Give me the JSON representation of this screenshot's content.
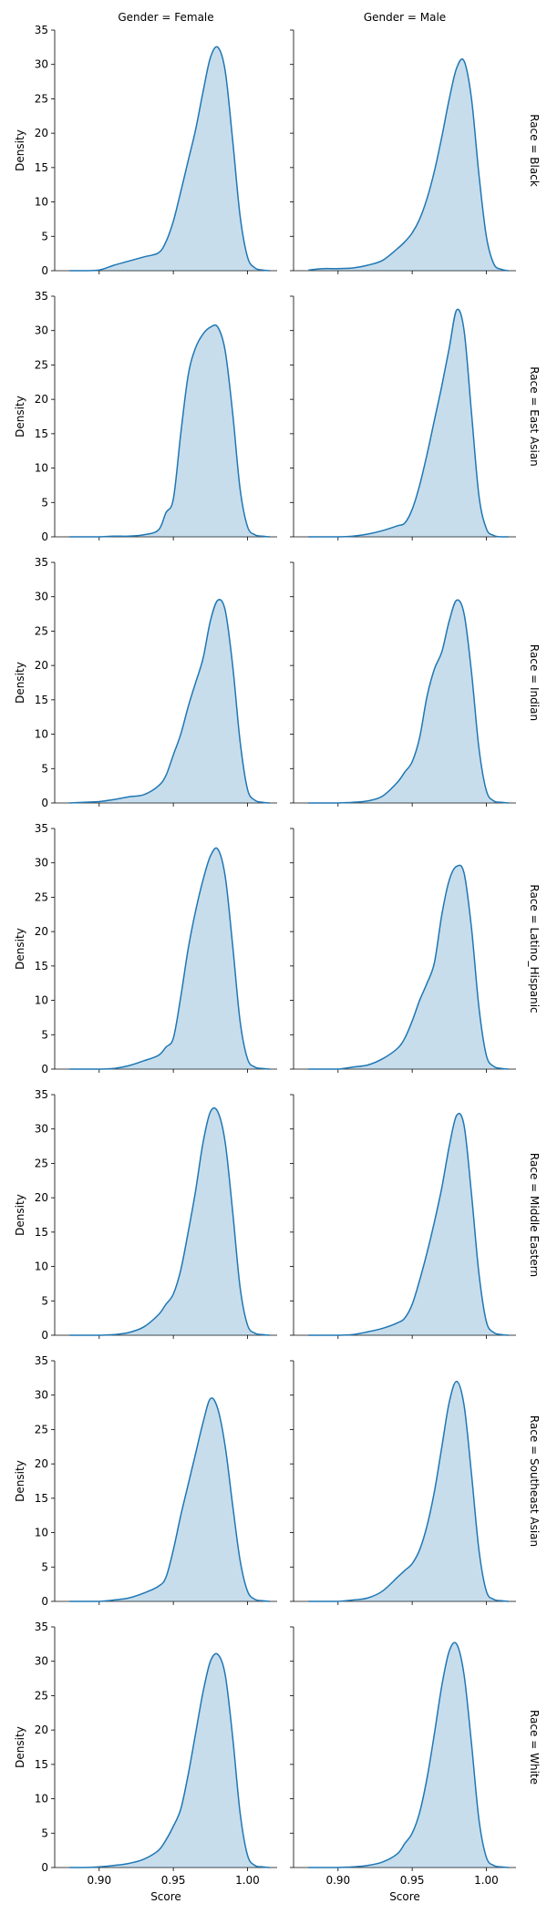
{
  "chart_data": {
    "type": "area",
    "kind": "kde-facet-grid",
    "col_labels": [
      "Gender = Female",
      "Gender = Male"
    ],
    "row_labels": [
      "Race = Black",
      "Race = East Asian",
      "Race = Indian",
      "Race = Latino_Hispanic",
      "Race = Middle Eastern",
      "Race = Southeast Asian",
      "Race = White"
    ],
    "xlabel": "Score",
    "ylabel": "Density",
    "xlim": [
      0.87,
      1.02
    ],
    "ylim": [
      0,
      35
    ],
    "xticks": [
      0.9,
      0.95,
      1.0
    ],
    "xtick_labels": [
      "0.90",
      "0.95",
      "1.00"
    ],
    "yticks": [
      0,
      5,
      10,
      15,
      20,
      25,
      30,
      35
    ],
    "ytick_labels": [
      "0",
      "5",
      "10",
      "15",
      "20",
      "25",
      "30",
      "35"
    ],
    "colors": {
      "line": "#1f77b4",
      "fill": "#1f77b4"
    },
    "x": [
      0.88,
      0.89,
      0.9,
      0.91,
      0.92,
      0.93,
      0.94,
      0.945,
      0.95,
      0.955,
      0.96,
      0.965,
      0.97,
      0.975,
      0.98,
      0.985,
      0.99,
      0.995,
      1.0,
      1.005,
      1.01,
      1.015
    ],
    "panels": [
      {
        "row": 0,
        "col": 0,
        "y": [
          0,
          0,
          0.1,
          0.8,
          1.4,
          2.0,
          2.6,
          4.2,
          7.2,
          11.5,
          16.0,
          20.5,
          26.0,
          31.0,
          32.5,
          29.0,
          19.0,
          8.0,
          2.0,
          0.4,
          0.1,
          0
        ]
      },
      {
        "row": 0,
        "col": 1,
        "y": [
          0.1,
          0.3,
          0.3,
          0.4,
          0.8,
          1.5,
          3.2,
          4.2,
          5.5,
          7.5,
          10.5,
          14.5,
          19.5,
          25.0,
          29.5,
          30.5,
          25.0,
          14.0,
          5.0,
          1.0,
          0.2,
          0
        ]
      },
      {
        "row": 1,
        "col": 0,
        "y": [
          0,
          0,
          0,
          0.1,
          0.1,
          0.3,
          1.0,
          3.5,
          5.5,
          15.0,
          23.5,
          27.5,
          29.5,
          30.5,
          30.5,
          27.0,
          18.0,
          7.0,
          1.5,
          0.3,
          0.1,
          0
        ]
      },
      {
        "row": 1,
        "col": 1,
        "y": [
          0,
          0,
          0,
          0.1,
          0.4,
          0.9,
          1.6,
          2.0,
          4.0,
          7.5,
          12.0,
          17.0,
          22.0,
          27.5,
          33.0,
          30.0,
          18.0,
          6.0,
          1.2,
          0.2,
          0,
          0
        ]
      },
      {
        "row": 2,
        "col": 0,
        "y": [
          0,
          0.1,
          0.2,
          0.5,
          0.9,
          1.2,
          2.5,
          4.0,
          7.0,
          10.0,
          14.0,
          17.5,
          21.0,
          26.5,
          29.5,
          28.0,
          20.0,
          9.0,
          2.0,
          0.4,
          0.1,
          0
        ]
      },
      {
        "row": 2,
        "col": 1,
        "y": [
          0,
          0,
          0,
          0.1,
          0.3,
          1.0,
          3.0,
          4.5,
          6.0,
          9.5,
          15.5,
          19.5,
          22.0,
          26.5,
          29.5,
          27.5,
          19.0,
          8.0,
          1.8,
          0.3,
          0.1,
          0
        ]
      },
      {
        "row": 3,
        "col": 0,
        "y": [
          0,
          0,
          0,
          0.1,
          0.5,
          1.2,
          2.0,
          3.2,
          4.5,
          10.5,
          17.5,
          23.0,
          27.5,
          31.0,
          32.0,
          28.0,
          18.0,
          7.0,
          1.5,
          0.3,
          0.1,
          0
        ]
      },
      {
        "row": 3,
        "col": 1,
        "y": [
          0,
          0,
          0,
          0.3,
          0.6,
          1.5,
          3.0,
          4.5,
          7.0,
          10.0,
          12.5,
          15.5,
          22.5,
          27.5,
          29.5,
          28.5,
          20.5,
          9.0,
          2.0,
          0.4,
          0.1,
          0
        ]
      },
      {
        "row": 4,
        "col": 0,
        "y": [
          0,
          0,
          0,
          0.1,
          0.4,
          1.2,
          3.0,
          4.5,
          6.0,
          9.5,
          15.0,
          21.0,
          28.0,
          32.5,
          32.5,
          28.0,
          18.0,
          7.0,
          1.5,
          0.3,
          0.1,
          0
        ]
      },
      {
        "row": 4,
        "col": 1,
        "y": [
          0,
          0,
          0,
          0.1,
          0.5,
          1.0,
          1.8,
          2.5,
          4.5,
          8.0,
          12.0,
          16.5,
          21.5,
          27.5,
          32.0,
          30.5,
          20.5,
          9.0,
          2.0,
          0.4,
          0.1,
          0
        ]
      },
      {
        "row": 5,
        "col": 0,
        "y": [
          0,
          0,
          0,
          0.2,
          0.5,
          1.2,
          2.2,
          3.5,
          7.5,
          12.5,
          17.0,
          21.5,
          26.0,
          29.5,
          28.0,
          22.5,
          14.0,
          6.0,
          1.5,
          0.3,
          0.1,
          0
        ]
      },
      {
        "row": 5,
        "col": 1,
        "y": [
          0,
          0,
          0,
          0.2,
          0.5,
          1.5,
          3.5,
          4.5,
          5.5,
          7.5,
          11.0,
          16.0,
          22.5,
          29.0,
          32.0,
          28.5,
          18.5,
          7.5,
          1.5,
          0.3,
          0.1,
          0
        ]
      },
      {
        "row": 6,
        "col": 0,
        "y": [
          0,
          0,
          0.1,
          0.3,
          0.6,
          1.2,
          2.5,
          4.0,
          6.0,
          8.5,
          13.5,
          19.5,
          25.5,
          30.0,
          31.0,
          28.0,
          19.0,
          8.0,
          1.8,
          0.3,
          0.1,
          0
        ]
      },
      {
        "row": 6,
        "col": 1,
        "y": [
          0,
          0,
          0,
          0.1,
          0.3,
          0.8,
          2.0,
          3.5,
          5.0,
          8.0,
          13.0,
          19.5,
          26.5,
          31.5,
          32.5,
          28.0,
          18.0,
          7.0,
          1.5,
          0.3,
          0.1,
          0
        ]
      }
    ]
  }
}
